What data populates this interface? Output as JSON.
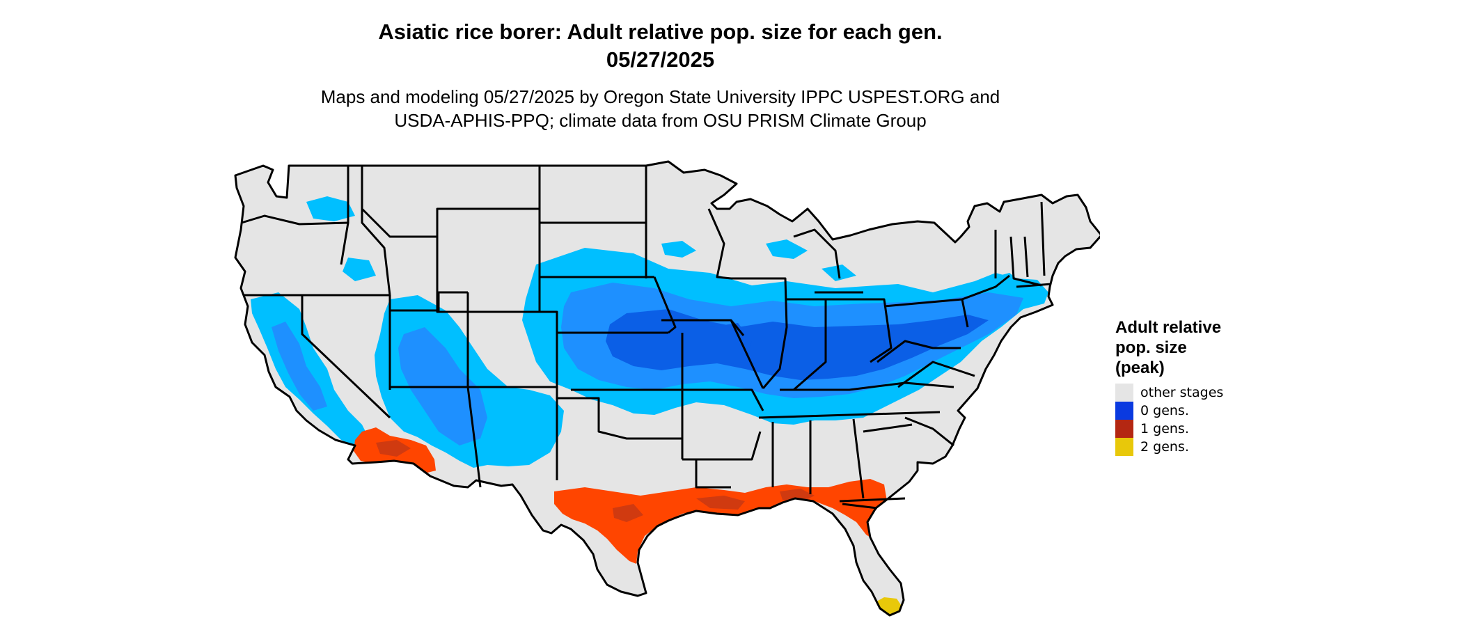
{
  "title": {
    "line1": "Asiatic rice borer: Adult relative pop. size for each gen.",
    "line2": "05/27/2025"
  },
  "subtitle": {
    "line1": "Maps and modeling 05/27/2025 by Oregon State University IPPC USPEST.ORG and",
    "line2": "USDA-APHIS-PPQ; climate data from OSU PRISM Climate Group"
  },
  "legend": {
    "title_line1": "Adult relative",
    "title_line2": "pop. size",
    "title_line3": "(peak)",
    "items": [
      {
        "label": "other stages",
        "color": "#e5e5e5"
      },
      {
        "label": "0 gens.",
        "color": "#0a3ae0"
      },
      {
        "label": "1 gens.",
        "color": "#b42712"
      },
      {
        "label": "2 gens.",
        "color": "#e8c80a"
      }
    ]
  },
  "map_colors": {
    "background_land": "#e5e5e5",
    "light_blue": "#00bfff",
    "mid_blue": "#1e90ff",
    "dark_blue": "#0b5fe6",
    "orange_red": "#ff4500",
    "dark_red": "#d03a10",
    "yellow": "#e8c80a",
    "borders": "#000000"
  }
}
